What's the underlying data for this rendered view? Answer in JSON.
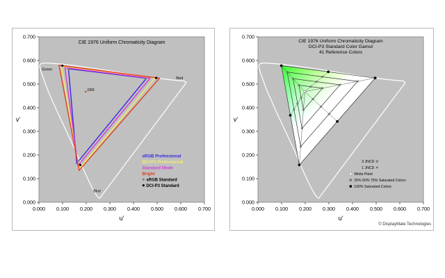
{
  "colors": {
    "plot_bg": "#c0c0c0",
    "locus": "#ffffff",
    "srgb_professional": "#3a28e0",
    "dci_p3_professional": "#f2ee66",
    "standard_mode": "#d23ed8",
    "bright": "#e04020",
    "srgb_standard": "#808080",
    "dci_p3_standard": "#000000"
  },
  "chart_data": [
    {
      "type": "scatter",
      "title": "CIE 1976 Uniform Chromaticity Diagram",
      "xlabel": "u'",
      "ylabel": "v'",
      "xlim": [
        0.0,
        0.7
      ],
      "ylim": [
        0.0,
        0.7
      ],
      "xticks": [
        "0.000",
        "0.100",
        "0.200",
        "0.300",
        "0.400",
        "0.500",
        "0.600",
        "0.700"
      ],
      "yticks": [
        "0.000",
        "0.100",
        "0.200",
        "0.300",
        "0.400",
        "0.500",
        "0.600",
        "0.700"
      ],
      "grid": false,
      "annotations": [
        {
          "text": "Green",
          "x": 0.012,
          "y": 0.558
        },
        {
          "text": "Red",
          "x": 0.58,
          "y": 0.52
        },
        {
          "text": "Blue",
          "x": 0.23,
          "y": 0.042
        },
        {
          "text": "D65",
          "x": 0.205,
          "y": 0.47
        }
      ],
      "white_point": {
        "x": 0.198,
        "y": 0.468
      },
      "legend_position": "bottom-right",
      "series": [
        {
          "name": "sRGB Professional",
          "color_key": "srgb_professional",
          "points": [
            [
              0.125,
              0.565
            ],
            [
              0.455,
              0.525
            ],
            [
              0.16,
              0.165
            ]
          ]
        },
        {
          "name": "DCI-P3 Professional",
          "color_key": "dci_p3_professional",
          "points": [
            [
              0.095,
              0.575
            ],
            [
              0.49,
              0.525
            ],
            [
              0.17,
              0.14
            ]
          ]
        },
        {
          "name": "Standard Mode",
          "color_key": "standard_mode",
          "points": [
            [
              0.11,
              0.57
            ],
            [
              0.47,
              0.525
            ],
            [
              0.165,
              0.155
            ]
          ]
        },
        {
          "name": "Bright",
          "color_key": "bright",
          "points": [
            [
              0.085,
              0.58
            ],
            [
              0.51,
              0.525
            ],
            [
              0.17,
              0.135
            ]
          ]
        },
        {
          "name": "sRGB Standard",
          "color_key": "srgb_standard",
          "marker": "o",
          "points": [
            [
              0.45,
              0.523
            ],
            [
              0.125,
              0.563
            ],
            [
              0.175,
              0.158
            ]
          ]
        },
        {
          "name": "DCI-P3 Standard",
          "color_key": "dci_p3_standard",
          "marker": "o",
          "points": [
            [
              0.099,
              0.578
            ],
            [
              0.496,
              0.526
            ],
            [
              0.175,
              0.158
            ]
          ]
        }
      ]
    },
    {
      "type": "scatter",
      "title": "CIE 1976 Uniform Chromaticity Diagram",
      "subtitle": "DCI-P3 Standard Color Gamut",
      "subtitle2": "41 Reference Colors",
      "xlabel": "u'",
      "ylabel": "v'",
      "xlim": [
        0.0,
        0.7
      ],
      "ylim": [
        0.0,
        0.7
      ],
      "xticks": [
        "0.000",
        "0.100",
        "0.200",
        "0.300",
        "0.400",
        "0.500",
        "0.600",
        "0.700"
      ],
      "yticks": [
        "0.000",
        "0.100",
        "0.200",
        "0.300",
        "0.400",
        "0.500",
        "0.600",
        "0.700"
      ],
      "grid": false,
      "white_point": {
        "x": 0.198,
        "y": 0.468
      },
      "primaries": {
        "red": [
          0.496,
          0.526
        ],
        "green": [
          0.099,
          0.578
        ],
        "blue": [
          0.175,
          0.158
        ]
      },
      "saturation_levels": [
        0.25,
        0.5,
        0.75,
        1.0
      ],
      "legend_position": "bottom-right",
      "legend": [
        {
          "label": "3 JNCD",
          "marker": "ring-large"
        },
        {
          "label": "1 JNCD",
          "marker": "ring-small"
        },
        {
          "label": "White Point",
          "marker": "white-dot"
        },
        {
          "label": "25% 50% 75% Saturated Colors",
          "marker": "gray-dot"
        },
        {
          "label": "100% Saturated Colors",
          "marker": "black-dot"
        }
      ]
    }
  ],
  "footer": {
    "copyright": "© DisplayMate Technologies"
  }
}
